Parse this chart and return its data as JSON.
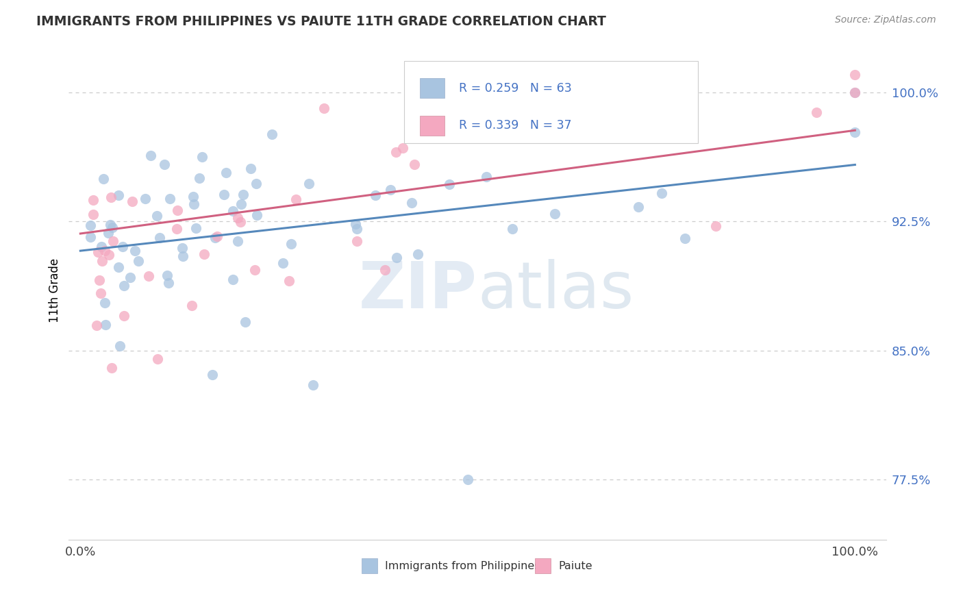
{
  "title": "IMMIGRANTS FROM PHILIPPINES VS PAIUTE 11TH GRADE CORRELATION CHART",
  "source_text": "Source: ZipAtlas.com",
  "ylabel": "11th Grade",
  "xlim": [
    0.0,
    1.0
  ],
  "ylim": [
    0.74,
    1.03
  ],
  "yticks": [
    0.775,
    0.85,
    0.925,
    1.0
  ],
  "ytick_labels": [
    "77.5%",
    "85.0%",
    "92.5%",
    "100.0%"
  ],
  "xticks": [
    0.0,
    1.0
  ],
  "xtick_labels": [
    "0.0%",
    "100.0%"
  ],
  "legend_label1": "Immigrants from Philippines",
  "legend_label2": "Paiute",
  "color1": "#a8c4e0",
  "color2": "#f4a8c0",
  "line_color1": "#5588bb",
  "line_color2": "#d06080",
  "watermark_zip": "ZIP",
  "watermark_atlas": "atlas",
  "blue_text_color": "#4472C4",
  "title_color": "#333333",
  "trendline1_x0": 0.0,
  "trendline1_y0": 0.908,
  "trendline1_x1": 1.0,
  "trendline1_y1": 0.958,
  "trendline2_x0": 0.0,
  "trendline2_y0": 0.918,
  "trendline2_x1": 1.0,
  "trendline2_y1": 0.978
}
